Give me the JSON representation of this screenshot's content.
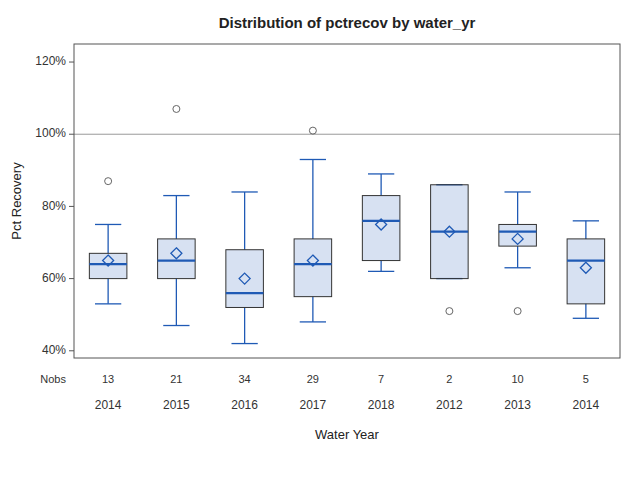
{
  "chart_data": {
    "type": "box",
    "title": "Distribution of pctrecov by water_yr",
    "xlabel": "Water Year",
    "ylabel": "Pct Recovery",
    "categories": [
      "2014",
      "2015",
      "2016",
      "2017",
      "2018",
      "2012",
      "2013",
      "2014"
    ],
    "nobs_label": "Nobs",
    "nobs": [
      13,
      21,
      34,
      29,
      7,
      2,
      10,
      5
    ],
    "boxes": [
      {
        "q1": 0.6,
        "median": 0.64,
        "q3": 0.67,
        "mean": 0.65,
        "whislo": 0.53,
        "whishi": 0.75,
        "fliers": [
          0.87
        ]
      },
      {
        "q1": 0.6,
        "median": 0.65,
        "q3": 0.71,
        "mean": 0.67,
        "whislo": 0.47,
        "whishi": 0.83,
        "fliers": [
          1.07
        ]
      },
      {
        "q1": 0.52,
        "median": 0.56,
        "q3": 0.68,
        "mean": 0.6,
        "whislo": 0.42,
        "whishi": 0.84,
        "fliers": []
      },
      {
        "q1": 0.55,
        "median": 0.64,
        "q3": 0.71,
        "mean": 0.65,
        "whislo": 0.48,
        "whishi": 0.93,
        "fliers": [
          1.01
        ]
      },
      {
        "q1": 0.65,
        "median": 0.76,
        "q3": 0.83,
        "mean": 0.75,
        "whislo": 0.62,
        "whishi": 0.89,
        "fliers": []
      },
      {
        "q1": 0.6,
        "median": 0.73,
        "q3": 0.86,
        "mean": 0.73,
        "whislo": 0.6,
        "whishi": 0.86,
        "fliers": [
          0.51
        ]
      },
      {
        "q1": 0.69,
        "median": 0.73,
        "q3": 0.75,
        "mean": 0.71,
        "whislo": 0.63,
        "whishi": 0.84,
        "fliers": [
          0.51
        ]
      },
      {
        "q1": 0.53,
        "median": 0.65,
        "q3": 0.71,
        "mean": 0.63,
        "whislo": 0.49,
        "whishi": 0.76,
        "fliers": []
      }
    ],
    "hline": 1.0,
    "color": "#1f5ab5",
    "ylim": [
      0.38,
      1.25
    ],
    "yticks": [
      {
        "value": 0.4,
        "label": "40%"
      },
      {
        "value": 0.6,
        "label": "60%"
      },
      {
        "value": 0.8,
        "label": "80%"
      },
      {
        "value": 1.0,
        "label": "100%"
      },
      {
        "value": 1.2,
        "label": "120%"
      }
    ],
    "grid": false
  }
}
